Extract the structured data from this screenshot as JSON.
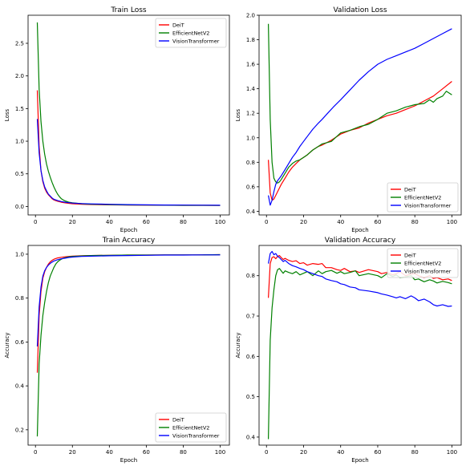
{
  "colors": {
    "DeiT": "#ff0000",
    "EfficientNetV2": "#008000",
    "VisionTransformer": "#0000ff"
  },
  "chart_data": [
    {
      "type": "line",
      "title": "Train Loss",
      "xlabel": "Epoch",
      "ylabel": "Loss",
      "xlim": [
        -4,
        105
      ],
      "ylim": [
        -0.13,
        2.93
      ],
      "xticks": [
        0,
        20,
        40,
        60,
        80,
        100
      ],
      "yticks": [
        0.0,
        0.5,
        1.0,
        1.5,
        2.0,
        2.5
      ],
      "legend": "top-right",
      "series": [
        {
          "name": "DeiT",
          "x": [
            1,
            2,
            3,
            4,
            5,
            6,
            7,
            8,
            9,
            10,
            12,
            14,
            16,
            18,
            20,
            25,
            30,
            40,
            50,
            60,
            70,
            80,
            90,
            100
          ],
          "y": [
            1.78,
            0.92,
            0.55,
            0.38,
            0.28,
            0.22,
            0.18,
            0.15,
            0.12,
            0.1,
            0.08,
            0.065,
            0.055,
            0.048,
            0.042,
            0.035,
            0.03,
            0.025,
            0.022,
            0.02,
            0.019,
            0.018,
            0.017,
            0.016
          ]
        },
        {
          "name": "EfficientNetV2",
          "x": [
            1,
            2,
            3,
            4,
            5,
            6,
            7,
            8,
            9,
            10,
            11,
            12,
            13,
            14,
            15,
            16,
            18,
            20,
            25,
            30,
            40,
            50,
            60,
            70,
            80,
            90,
            100
          ],
          "y": [
            2.82,
            1.8,
            1.3,
            1.0,
            0.8,
            0.65,
            0.54,
            0.45,
            0.37,
            0.3,
            0.24,
            0.19,
            0.15,
            0.12,
            0.1,
            0.085,
            0.065,
            0.055,
            0.042,
            0.035,
            0.028,
            0.024,
            0.021,
            0.02,
            0.018,
            0.017,
            0.016
          ]
        },
        {
          "name": "VisionTransformer",
          "x": [
            1,
            2,
            3,
            4,
            5,
            6,
            7,
            8,
            9,
            10,
            12,
            14,
            16,
            18,
            20,
            25,
            30,
            40,
            50,
            60,
            70,
            80,
            90,
            100
          ],
          "y": [
            1.34,
            0.82,
            0.55,
            0.4,
            0.3,
            0.24,
            0.19,
            0.16,
            0.13,
            0.11,
            0.09,
            0.075,
            0.065,
            0.058,
            0.052,
            0.045,
            0.04,
            0.033,
            0.028,
            0.025,
            0.023,
            0.021,
            0.02,
            0.019
          ]
        }
      ]
    },
    {
      "type": "line",
      "title": "Validation Loss",
      "xlabel": "Epoch",
      "ylabel": "Loss",
      "xlim": [
        -4,
        105
      ],
      "ylim": [
        0.37,
        2.0
      ],
      "xticks": [
        0,
        20,
        40,
        60,
        80,
        100
      ],
      "yticks": [
        0.4,
        0.6,
        0.8,
        1.0,
        1.2,
        1.4,
        1.6,
        1.8,
        2.0
      ],
      "legend": "bottom-right",
      "series": [
        {
          "name": "DeiT",
          "x": [
            1,
            2,
            3,
            4,
            5,
            6,
            7,
            8,
            10,
            12,
            14,
            16,
            18,
            20,
            22,
            25,
            28,
            30,
            35,
            40,
            45,
            50,
            55,
            60,
            65,
            70,
            75,
            80,
            85,
            90,
            95,
            100
          ],
          "y": [
            0.82,
            0.55,
            0.49,
            0.5,
            0.53,
            0.56,
            0.59,
            0.62,
            0.67,
            0.72,
            0.76,
            0.79,
            0.82,
            0.84,
            0.86,
            0.9,
            0.93,
            0.94,
            0.98,
            1.03,
            1.06,
            1.08,
            1.12,
            1.15,
            1.18,
            1.2,
            1.23,
            1.26,
            1.3,
            1.34,
            1.4,
            1.46
          ]
        },
        {
          "name": "EfficientNetV2",
          "x": [
            1,
            2,
            3,
            4,
            5,
            6,
            7,
            8,
            10,
            12,
            14,
            16,
            18,
            20,
            22,
            25,
            28,
            30,
            35,
            40,
            45,
            50,
            55,
            60,
            65,
            70,
            75,
            80,
            85,
            88,
            90,
            92,
            95,
            97,
            100
          ],
          "y": [
            1.93,
            1.15,
            0.8,
            0.67,
            0.64,
            0.63,
            0.64,
            0.66,
            0.71,
            0.76,
            0.79,
            0.81,
            0.82,
            0.84,
            0.86,
            0.9,
            0.93,
            0.95,
            0.97,
            1.04,
            1.06,
            1.09,
            1.11,
            1.15,
            1.2,
            1.22,
            1.25,
            1.27,
            1.28,
            1.31,
            1.29,
            1.32,
            1.34,
            1.38,
            1.35
          ]
        },
        {
          "name": "VisionTransformer",
          "x": [
            1,
            2,
            3,
            4,
            5,
            6,
            7,
            8,
            10,
            12,
            14,
            16,
            18,
            20,
            22,
            25,
            28,
            30,
            33,
            36,
            40,
            45,
            50,
            55,
            60,
            65,
            70,
            75,
            80,
            85,
            90,
            95,
            100
          ],
          "y": [
            0.53,
            0.45,
            0.49,
            0.56,
            0.62,
            0.65,
            0.67,
            0.69,
            0.74,
            0.79,
            0.84,
            0.88,
            0.93,
            0.97,
            1.01,
            1.07,
            1.12,
            1.15,
            1.2,
            1.25,
            1.31,
            1.39,
            1.47,
            1.54,
            1.6,
            1.64,
            1.67,
            1.7,
            1.73,
            1.77,
            1.81,
            1.85,
            1.89
          ]
        }
      ]
    },
    {
      "type": "line",
      "title": "Train Accuracy",
      "xlabel": "Epoch",
      "ylabel": "Accuracy",
      "xlim": [
        -4,
        105
      ],
      "ylim": [
        0.13,
        1.04
      ],
      "xticks": [
        0,
        20,
        40,
        60,
        80,
        100
      ],
      "yticks": [
        0.2,
        0.4,
        0.6,
        0.8,
        1.0
      ],
      "legend": "bottom-right",
      "series": [
        {
          "name": "DeiT",
          "x": [
            1,
            2,
            3,
            4,
            5,
            6,
            7,
            8,
            9,
            10,
            12,
            14,
            16,
            18,
            20,
            25,
            30,
            40,
            50,
            60,
            70,
            80,
            90,
            100
          ],
          "y": [
            0.46,
            0.72,
            0.83,
            0.89,
            0.92,
            0.94,
            0.955,
            0.965,
            0.972,
            0.977,
            0.983,
            0.986,
            0.988,
            0.99,
            0.991,
            0.993,
            0.994,
            0.995,
            0.996,
            0.996,
            0.997,
            0.997,
            0.997,
            0.998
          ]
        },
        {
          "name": "EfficientNetV2",
          "x": [
            1,
            2,
            3,
            4,
            5,
            6,
            7,
            8,
            9,
            10,
            11,
            12,
            13,
            14,
            15,
            16,
            18,
            20,
            25,
            30,
            40,
            50,
            60,
            70,
            80,
            90,
            100
          ],
          "y": [
            0.17,
            0.5,
            0.63,
            0.72,
            0.78,
            0.83,
            0.87,
            0.9,
            0.92,
            0.94,
            0.955,
            0.965,
            0.972,
            0.977,
            0.981,
            0.984,
            0.988,
            0.99,
            0.992,
            0.994,
            0.995,
            0.996,
            0.996,
            0.997,
            0.997,
            0.997,
            0.998
          ]
        },
        {
          "name": "VisionTransformer",
          "x": [
            1,
            2,
            3,
            4,
            5,
            6,
            7,
            8,
            9,
            10,
            12,
            14,
            16,
            18,
            20,
            25,
            30,
            40,
            50,
            60,
            70,
            80,
            90,
            100
          ],
          "y": [
            0.58,
            0.76,
            0.85,
            0.9,
            0.925,
            0.94,
            0.95,
            0.958,
            0.964,
            0.969,
            0.975,
            0.979,
            0.982,
            0.985,
            0.987,
            0.99,
            0.991,
            0.993,
            0.994,
            0.995,
            0.996,
            0.996,
            0.997,
            0.997
          ]
        }
      ]
    },
    {
      "type": "line",
      "title": "Validation Accuracy",
      "xlabel": "Epoch",
      "ylabel": "Accuracy",
      "xlim": [
        -4,
        105
      ],
      "ylim": [
        0.38,
        0.875
      ],
      "xticks": [
        0,
        20,
        40,
        60,
        80,
        100
      ],
      "yticks": [
        0.4,
        0.5,
        0.6,
        0.7,
        0.8
      ],
      "legend": "top-right",
      "series": [
        {
          "name": "DeiT",
          "x": [
            1,
            2,
            3,
            4,
            5,
            6,
            7,
            8,
            9,
            10,
            12,
            14,
            16,
            18,
            20,
            22,
            25,
            28,
            30,
            32,
            35,
            38,
            40,
            42,
            45,
            48,
            50,
            55,
            60,
            62,
            65,
            68,
            70,
            72,
            75,
            78,
            80,
            82,
            85,
            88,
            90,
            92,
            95,
            98,
            100
          ],
          "y": [
            0.745,
            0.83,
            0.845,
            0.847,
            0.842,
            0.848,
            0.85,
            0.845,
            0.84,
            0.843,
            0.838,
            0.835,
            0.837,
            0.83,
            0.832,
            0.826,
            0.83,
            0.828,
            0.83,
            0.82,
            0.82,
            0.815,
            0.813,
            0.818,
            0.81,
            0.812,
            0.808,
            0.815,
            0.81,
            0.805,
            0.808,
            0.802,
            0.805,
            0.81,
            0.8,
            0.804,
            0.805,
            0.8,
            0.795,
            0.8,
            0.793,
            0.795,
            0.79,
            0.792,
            0.788
          ]
        },
        {
          "name": "EfficientNetV2",
          "x": [
            1,
            2,
            3,
            4,
            5,
            6,
            7,
            8,
            9,
            10,
            12,
            14,
            16,
            18,
            20,
            22,
            25,
            28,
            30,
            32,
            35,
            38,
            40,
            42,
            45,
            48,
            50,
            55,
            60,
            62,
            65,
            68,
            70,
            72,
            75,
            78,
            80,
            82,
            85,
            88,
            90,
            92,
            95,
            98,
            100
          ],
          "y": [
            0.395,
            0.64,
            0.72,
            0.765,
            0.8,
            0.815,
            0.818,
            0.812,
            0.806,
            0.812,
            0.808,
            0.805,
            0.81,
            0.802,
            0.806,
            0.81,
            0.8,
            0.812,
            0.805,
            0.81,
            0.813,
            0.806,
            0.81,
            0.805,
            0.808,
            0.812,
            0.8,
            0.805,
            0.8,
            0.795,
            0.805,
            0.798,
            0.802,
            0.795,
            0.797,
            0.8,
            0.79,
            0.792,
            0.785,
            0.79,
            0.787,
            0.782,
            0.786,
            0.783,
            0.78
          ]
        },
        {
          "name": "VisionTransformer",
          "x": [
            1,
            2,
            3,
            4,
            5,
            6,
            7,
            8,
            9,
            10,
            12,
            14,
            16,
            18,
            20,
            22,
            25,
            28,
            30,
            32,
            35,
            38,
            40,
            42,
            45,
            48,
            50,
            55,
            60,
            62,
            65,
            68,
            70,
            72,
            75,
            78,
            80,
            82,
            85,
            88,
            90,
            92,
            95,
            98,
            100
          ],
          "y": [
            0.83,
            0.855,
            0.86,
            0.852,
            0.855,
            0.848,
            0.845,
            0.84,
            0.835,
            0.838,
            0.83,
            0.825,
            0.822,
            0.818,
            0.815,
            0.81,
            0.805,
            0.8,
            0.798,
            0.792,
            0.788,
            0.785,
            0.78,
            0.778,
            0.772,
            0.77,
            0.765,
            0.762,
            0.758,
            0.755,
            0.752,
            0.748,
            0.745,
            0.748,
            0.743,
            0.75,
            0.745,
            0.738,
            0.742,
            0.735,
            0.728,
            0.725,
            0.728,
            0.724,
            0.725
          ]
        }
      ]
    }
  ]
}
